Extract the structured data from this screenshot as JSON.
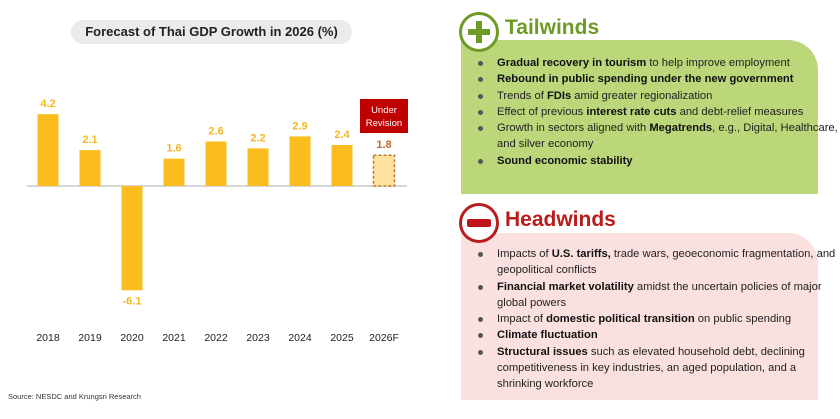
{
  "chart_data": {
    "type": "bar",
    "title": "Forecast of Thai GDP Growth in 2026 (%)",
    "categories": [
      "2018",
      "2019",
      "2020",
      "2021",
      "2022",
      "2023",
      "2024",
      "2025",
      "2026F"
    ],
    "values": [
      4.2,
      2.1,
      -6.1,
      1.6,
      2.6,
      2.2,
      2.9,
      2.4,
      1.8
    ],
    "value_labels": [
      "4.2",
      "2.1",
      "-6.1",
      "1.6",
      "2.6",
      "2.2",
      "2.9",
      "2.4",
      "1.8"
    ],
    "annotation": "Under Revision",
    "annotation_lines": [
      "Under",
      "Revision"
    ],
    "colors": {
      "bar": "#fbbd1e",
      "forecast_fill": "#fde2a0",
      "forecast_border": "#c8752a",
      "forecast_label": "#c0652a",
      "annotation_bg": "#c00000",
      "label": "#f4b622"
    },
    "grid": false
  },
  "source": "Source: NESDC and Krungsri Research",
  "tailwinds": {
    "title": "Tailwinds",
    "icon": "plus-icon",
    "items": [
      [
        {
          "t": "Gradual recovery in tourism",
          "b": true
        },
        {
          "t": " to help improve employment"
        }
      ],
      [
        {
          "t": "Rebound in public spending under the new government",
          "b": true
        }
      ],
      [
        {
          "t": "Trends of  "
        },
        {
          "t": "FDIs",
          "b": true
        },
        {
          "t": " amid greater regionalization"
        }
      ],
      [
        {
          "t": "Effect of previous "
        },
        {
          "t": "interest rate cuts",
          "b": true
        },
        {
          "t": " and debt-relief measures"
        }
      ],
      [
        {
          "t": "Growth in sectors aligned with "
        },
        {
          "t": "Megatrends",
          "b": true
        },
        {
          "t": ", e.g., Digital, Healthcare, and silver economy"
        }
      ],
      [
        {
          "t": "Sound economic stability",
          "b": true
        }
      ]
    ]
  },
  "headwinds": {
    "title": "Headwinds",
    "icon": "minus-icon",
    "items": [
      [
        {
          "t": "Impacts of "
        },
        {
          "t": "U.S. tariffs,",
          "b": true
        },
        {
          "t": " trade wars, geoeconomic fragmentation, and geopolitical conflicts"
        }
      ],
      [
        {
          "t": "Financial market volatility",
          "b": true
        },
        {
          "t": " amidst the uncertain policies of major global powers"
        }
      ],
      [
        {
          "t": "Impact of "
        },
        {
          "t": "domestic political transition",
          "b": true
        },
        {
          "t": " on public spending"
        }
      ],
      [
        {
          "t": "Climate fluctuation",
          "b": true
        }
      ],
      [
        {
          "t": "Structural issues",
          "b": true
        },
        {
          "t": " such as elevated household debt, declining competitiveness in key industries, an aged population, and a shrinking workforce"
        }
      ]
    ]
  }
}
